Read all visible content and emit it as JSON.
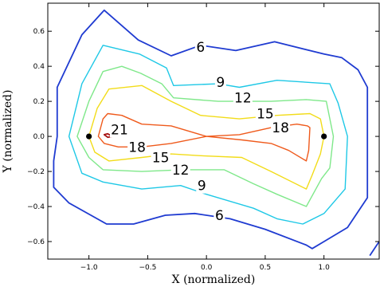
{
  "chart_data": {
    "type": "contour",
    "xlabel": "X (normalized)",
    "ylabel": "Y (normalized)",
    "xlim": [
      -1.35,
      1.47
    ],
    "ylim": [
      -0.7,
      0.76
    ],
    "xticks": [
      -1.0,
      -0.5,
      0.0,
      0.5,
      1.0
    ],
    "xtick_labels": [
      "−1.0",
      "−0.5",
      "0.0",
      "0.5",
      "1.0"
    ],
    "yticks": [
      -0.6,
      -0.4,
      -0.2,
      0.0,
      0.2,
      0.4,
      0.6
    ],
    "ytick_labels": [
      "−0.6",
      "−0.4",
      "−0.2",
      "0.0",
      "0.2",
      "0.4",
      "0.6"
    ],
    "grid": false,
    "points": [
      {
        "x": -1.0,
        "y": 0.0,
        "color": "#000000"
      },
      {
        "x": 1.0,
        "y": 0.0,
        "color": "#000000"
      }
    ],
    "contours": [
      {
        "level": 6,
        "label": "6",
        "color": "#1f3bd1",
        "closed": true,
        "width": 1.8,
        "points": [
          [
            -1.27,
            0.0
          ],
          [
            -1.27,
            0.28
          ],
          [
            -1.06,
            0.58
          ],
          [
            -0.87,
            0.72
          ],
          [
            -0.58,
            0.55
          ],
          [
            -0.3,
            0.46
          ],
          [
            -0.05,
            0.52
          ],
          [
            0.25,
            0.49
          ],
          [
            0.58,
            0.54
          ],
          [
            1.0,
            0.47
          ],
          [
            1.15,
            0.45
          ],
          [
            1.29,
            0.38
          ],
          [
            1.37,
            0.28
          ],
          [
            1.37,
            -0.1
          ],
          [
            1.37,
            -0.35
          ],
          [
            1.2,
            -0.52
          ],
          [
            1.0,
            -0.6
          ],
          [
            0.9,
            -0.64
          ],
          [
            0.85,
            -0.62
          ],
          [
            0.5,
            -0.53
          ],
          [
            0.2,
            -0.47
          ],
          [
            -0.1,
            -0.44
          ],
          [
            -0.35,
            -0.45
          ],
          [
            -0.62,
            -0.5
          ],
          [
            -0.85,
            -0.5
          ],
          [
            -1.17,
            -0.38
          ],
          [
            -1.3,
            -0.29
          ],
          [
            -1.3,
            -0.14
          ]
        ],
        "label_pos": [
          -0.05,
          0.51
        ]
      },
      {
        "level": 6,
        "label": "",
        "color": "#1f3bd1",
        "closed": false,
        "width": 1.8,
        "points": [
          [
            1.39,
            -0.68
          ],
          [
            1.45,
            -0.62
          ],
          [
            1.47,
            -0.6
          ]
        ],
        "label_pos": null
      },
      {
        "level": 9,
        "label": "9",
        "color": "#1ec8e6",
        "closed": true,
        "width": 1.4,
        "points": [
          [
            -1.17,
            0.0
          ],
          [
            -1.06,
            0.3
          ],
          [
            -0.88,
            0.52
          ],
          [
            -0.57,
            0.47
          ],
          [
            -0.34,
            0.39
          ],
          [
            -0.28,
            0.29
          ],
          [
            0.1,
            0.3
          ],
          [
            0.28,
            0.28
          ],
          [
            0.6,
            0.32
          ],
          [
            1.05,
            0.3
          ],
          [
            1.12,
            0.19
          ],
          [
            1.2,
            0.0
          ],
          [
            1.18,
            -0.3
          ],
          [
            1.0,
            -0.44
          ],
          [
            0.82,
            -0.5
          ],
          [
            0.6,
            -0.47
          ],
          [
            0.4,
            -0.41
          ],
          [
            0.0,
            -0.33
          ],
          [
            -0.22,
            -0.28
          ],
          [
            -0.55,
            -0.3
          ],
          [
            -0.88,
            -0.26
          ],
          [
            -1.06,
            -0.21
          ]
        ],
        "label_pos": [
          0.12,
          0.31
        ]
      },
      {
        "level": 12,
        "label": "12",
        "color": "#7fe88a",
        "closed": true,
        "width": 1.4,
        "points": [
          [
            -1.1,
            0.0
          ],
          [
            -1.0,
            0.2
          ],
          [
            -0.88,
            0.37
          ],
          [
            -0.72,
            0.4
          ],
          [
            -0.56,
            0.36
          ],
          [
            -0.38,
            0.3
          ],
          [
            -0.28,
            0.22
          ],
          [
            0.1,
            0.2
          ],
          [
            0.3,
            0.2
          ],
          [
            0.55,
            0.2
          ],
          [
            0.85,
            0.21
          ],
          [
            1.02,
            0.2
          ],
          [
            1.08,
            0.0
          ],
          [
            1.05,
            -0.18
          ],
          [
            0.98,
            -0.24
          ],
          [
            0.85,
            -0.4
          ],
          [
            0.6,
            -0.33
          ],
          [
            0.4,
            -0.27
          ],
          [
            0.15,
            -0.19
          ],
          [
            -0.2,
            -0.19
          ],
          [
            -0.55,
            -0.2
          ],
          [
            -0.88,
            -0.19
          ],
          [
            -1.0,
            -0.12
          ]
        ],
        "label_pos": [
          0.31,
          0.22
        ]
      },
      {
        "level": 15,
        "label": "15",
        "color": "#f2dc19",
        "closed": true,
        "width": 1.4,
        "points": [
          [
            -1.0,
            0.0
          ],
          [
            -0.93,
            0.16
          ],
          [
            -0.83,
            0.27
          ],
          [
            -0.55,
            0.29
          ],
          [
            -0.3,
            0.2
          ],
          [
            -0.05,
            0.12
          ],
          [
            0.28,
            0.1
          ],
          [
            0.6,
            0.12
          ],
          [
            0.88,
            0.13
          ],
          [
            0.97,
            0.1
          ],
          [
            1.0,
            0.0
          ],
          [
            0.97,
            -0.1
          ],
          [
            0.9,
            -0.22
          ],
          [
            0.85,
            -0.3
          ],
          [
            0.55,
            -0.2
          ],
          [
            0.3,
            -0.12
          ],
          [
            -0.05,
            -0.11
          ],
          [
            -0.3,
            -0.1
          ],
          [
            -0.55,
            -0.12
          ],
          [
            -0.83,
            -0.14
          ],
          [
            -0.95,
            -0.09
          ]
        ],
        "label_pos": [
          0.5,
          0.13
        ]
      },
      {
        "level": 18,
        "label": "18",
        "color": "#ef5a1c",
        "closed": true,
        "width": 1.4,
        "points": [
          [
            -0.92,
            0.0
          ],
          [
            -0.88,
            0.1
          ],
          [
            -0.84,
            0.13
          ],
          [
            -0.72,
            0.12
          ],
          [
            -0.55,
            0.07
          ],
          [
            -0.3,
            0.06
          ],
          [
            0.0,
            0.0
          ],
          [
            0.28,
            0.01
          ],
          [
            0.55,
            0.05
          ],
          [
            0.77,
            0.07
          ],
          [
            0.86,
            0.06
          ],
          [
            0.88,
            0.05
          ],
          [
            0.87,
            -0.08
          ],
          [
            0.85,
            -0.14
          ],
          [
            0.7,
            -0.08
          ],
          [
            0.55,
            -0.04
          ],
          [
            0.3,
            -0.02
          ],
          [
            0.0,
            0.0
          ],
          [
            -0.3,
            -0.04
          ],
          [
            -0.55,
            -0.06
          ],
          [
            -0.75,
            -0.06
          ],
          [
            -0.87,
            -0.04
          ]
        ],
        "label_pos": [
          0.63,
          0.05
        ]
      },
      {
        "level": 21,
        "label": "21",
        "color": "#a61212",
        "closed": true,
        "width": 1.8,
        "points": [
          [
            -0.87,
            0.01
          ],
          [
            -0.84,
            0.015
          ],
          [
            -0.8,
            0.0
          ],
          [
            -0.84,
            -0.005
          ]
        ],
        "label_pos": [
          -0.74,
          0.04
        ]
      }
    ],
    "extra_labels": [
      {
        "text": "6",
        "x": 0.11,
        "y": -0.45
      },
      {
        "text": "9",
        "x": -0.04,
        "y": -0.28
      },
      {
        "text": "12",
        "x": -0.22,
        "y": -0.19
      },
      {
        "text": "15",
        "x": -0.39,
        "y": -0.12
      },
      {
        "text": "18",
        "x": -0.59,
        "y": -0.06
      }
    ]
  }
}
